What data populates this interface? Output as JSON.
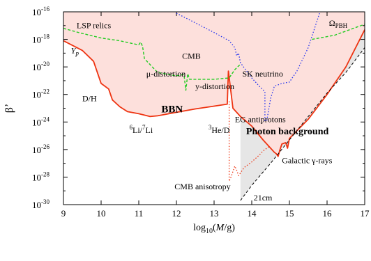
{
  "chart_data": {
    "type": "line",
    "title": "",
    "xlabel_prefix": "log",
    "xlabel_sub": "10",
    "xlabel_mid": "(",
    "xlabel_var": "M",
    "xlabel_end": "/g)",
    "ylabel": "β’",
    "xlim": [
      9,
      17
    ],
    "ylim_exp": [
      -30,
      -16
    ],
    "x_ticks": [
      "9",
      "10",
      "11",
      "12",
      "13",
      "14",
      "15",
      "16",
      "17"
    ],
    "y_ticks": [
      "-30",
      "-28",
      "-26",
      "-24",
      "-22",
      "-20",
      "-18",
      "-16"
    ],
    "y_tick_base": "10",
    "colors": {
      "constraint_line": "#ee3311",
      "excluded_fill": "#fde0dc",
      "lsp_line": "#22cc22",
      "neutrino_line": "#2233ee",
      "bound_21cm_fill": "#e6e6e6",
      "anisotropy_line": "#ee3311"
    },
    "series": [
      {
        "name": "BBN / CMB / photon constraint",
        "style": "solid",
        "x": [
          9.0,
          9.5,
          9.8,
          10.0,
          10.2,
          10.3,
          10.5,
          10.7,
          11.0,
          11.3,
          11.5,
          12.0,
          12.5,
          13.0,
          13.35,
          13.38,
          13.5,
          13.7,
          14.0,
          14.3,
          14.5,
          14.6,
          14.65,
          14.7,
          14.75,
          14.8,
          14.9,
          14.95,
          15.0,
          15.5,
          16.0,
          16.5,
          17.0
        ],
        "y": [
          -18.1,
          -18.8,
          -19.6,
          -21.2,
          -21.6,
          -22.4,
          -22.9,
          -23.25,
          -23.4,
          -23.6,
          -23.55,
          -23.3,
          -23.05,
          -22.85,
          -22.7,
          -20.3,
          -23.0,
          -23.6,
          -24.3,
          -25.3,
          -25.9,
          -26.2,
          -26.3,
          -26.5,
          -26.0,
          -25.6,
          -25.5,
          -25.9,
          -25.2,
          -23.8,
          -22.0,
          -20.0,
          -17.3
        ]
      },
      {
        "name": "LSP relics",
        "style": "dashed",
        "x": [
          9.0,
          9.4,
          10.0,
          10.5,
          11.0
        ],
        "y": [
          -17.2,
          -17.5,
          -17.9,
          -18.1,
          -18.4
        ]
      },
      {
        "name": "μ-distortion / y-distortion",
        "style": "dashed",
        "x": [
          11.0,
          11.05,
          11.1,
          11.15,
          11.5,
          12.0,
          12.2,
          12.25,
          12.3,
          12.35,
          12.6,
          13.0,
          13.4,
          13.55,
          13.7
        ],
        "y": [
          -18.4,
          -18.2,
          -18.5,
          -19.4,
          -20.4,
          -20.65,
          -20.55,
          -21.7,
          -20.5,
          -20.9,
          -20.9,
          -20.9,
          -20.8,
          -20.2,
          -19.8
        ]
      },
      {
        "name": "SK neutrino",
        "style": "dotted",
        "x": [
          12.0,
          12.5,
          13.0,
          13.4,
          13.55,
          13.6,
          13.65,
          13.7,
          14.0,
          14.2,
          14.35,
          14.35,
          14.35,
          14.4,
          14.5,
          14.6,
          14.8,
          15.0,
          15.2,
          15.5,
          15.8
        ],
        "y": [
          -16.1,
          -16.8,
          -17.5,
          -18.1,
          -18.6,
          -19.2,
          -19.0,
          -19.7,
          -20.8,
          -21.4,
          -21.8,
          -23.6,
          -23.9,
          -23.9,
          -22.3,
          -21.4,
          -21.2,
          -21.1,
          -20.3,
          -18.6,
          -16.1
        ]
      },
      {
        "name": "Ω_PBH",
        "style": "dashed",
        "x": [
          15.6,
          16.2,
          17.0
        ],
        "y": [
          -18.0,
          -17.7,
          -16.9
        ]
      },
      {
        "name": "CMB anisotropy",
        "style": "dotted",
        "x": [
          13.4,
          13.4,
          13.45,
          13.5,
          13.55,
          13.6,
          13.65,
          13.8,
          14.0,
          14.2,
          14.3,
          14.35,
          14.45
        ],
        "y": [
          -22.5,
          -28.3,
          -28.0,
          -27.6,
          -27.2,
          -27.5,
          -27.9,
          -27.3,
          -26.9,
          -26.4,
          -26.1,
          -26.0,
          -25.8
        ]
      },
      {
        "name": "21cm",
        "style": "dashed",
        "x": [
          13.7,
          14.0,
          14.5,
          15.0,
          15.5,
          16.0,
          16.5,
          17.0
        ],
        "y": [
          -29.7,
          -28.6,
          -27.0,
          -25.3,
          -23.6,
          -21.9,
          -20.4,
          -18.6
        ]
      }
    ],
    "annotations": [
      {
        "text": "LSP relics",
        "x": 9.35,
        "y": -17.2
      },
      {
        "text": "CMB",
        "x": 12.15,
        "y": -19.4
      },
      {
        "text": "μ-distortion",
        "x": 11.2,
        "y": -20.7
      },
      {
        "text": "y-distortion",
        "x": 12.5,
        "y": -21.6
      },
      {
        "text": "SK neutrino",
        "x": 13.75,
        "y": -20.7
      },
      {
        "text": "D/H",
        "x": 9.5,
        "y": -22.5
      },
      {
        "text": "BBN",
        "x": 11.6,
        "y": -23.3
      },
      {
        "text": "EG antiprotons",
        "x": 13.55,
        "y": -24.0
      },
      {
        "text": "Photon background",
        "x": 13.85,
        "y": -24.9
      },
      {
        "text": "Galactic γ-rays",
        "x": 14.8,
        "y": -27.0
      },
      {
        "text": "CMB anisotropy",
        "x": 11.95,
        "y": -28.9
      },
      {
        "text": "21cm",
        "x": 14.05,
        "y": -29.7
      }
    ],
    "yp_label": {
      "main": "Y",
      "sub": "p",
      "x": 9.2,
      "y": -19.0
    },
    "li_label": {
      "sup1": "6",
      "mid": "Li/",
      "sup2": "7",
      "end": "Li",
      "x": 10.75,
      "y": -24.8
    },
    "he_label": {
      "sup": "3",
      "main": "He/D",
      "x": 12.85,
      "y": -24.8
    },
    "omega_label": {
      "main": "Ω",
      "sub": "PBH",
      "x": 16.05,
      "y": -17.0
    }
  }
}
